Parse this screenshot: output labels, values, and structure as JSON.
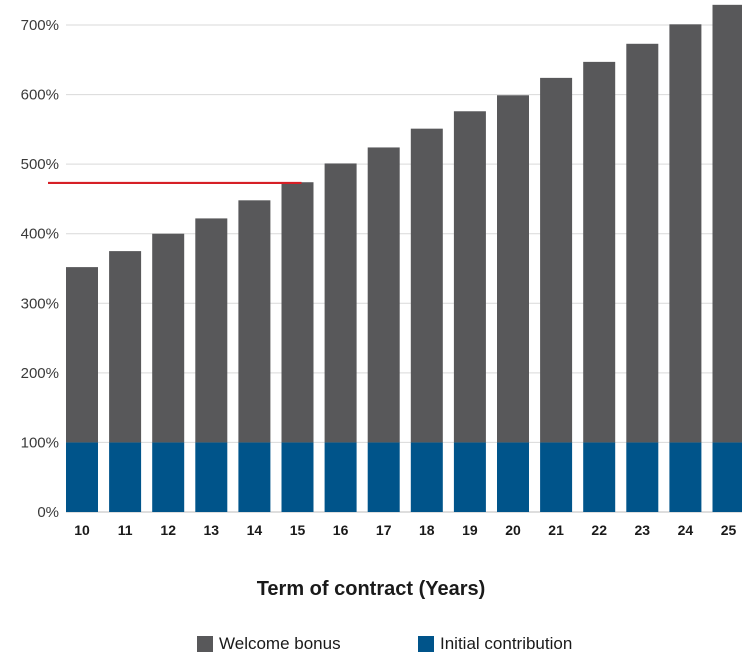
{
  "chart_data": {
    "type": "bar",
    "stacked": true,
    "categories": [
      "10",
      "11",
      "12",
      "13",
      "14",
      "15",
      "16",
      "17",
      "18",
      "19",
      "20",
      "21",
      "22",
      "23",
      "24",
      "25"
    ],
    "series": [
      {
        "name": "Initial contribution",
        "color": "#00548a",
        "values": [
          100,
          100,
          100,
          100,
          100,
          100,
          100,
          100,
          100,
          100,
          100,
          100,
          100,
          100,
          100,
          100
        ]
      },
      {
        "name": "Welcome bonus",
        "color": "#58585a",
        "values": [
          252,
          275,
          300,
          322,
          348,
          374,
          401,
          424,
          451,
          476,
          499,
          524,
          547,
          573,
          601,
          629
        ]
      }
    ],
    "reference_line": {
      "value": 473,
      "from_category": "10",
      "to_category": "15",
      "color": "#d61f26"
    },
    "xlabel": "Term of contract (Years)",
    "ylabel": "",
    "ylim": [
      0,
      700
    ],
    "yticks": [
      "0%",
      "100%",
      "200%",
      "300%",
      "400%",
      "500%",
      "600%",
      "700%"
    ],
    "grid": true,
    "legend_position": "bottom-center"
  },
  "legend": {
    "items": [
      {
        "label": "Welcome bonus",
        "color": "#58585a"
      },
      {
        "label": "Initial contribution",
        "color": "#00548a"
      }
    ]
  }
}
